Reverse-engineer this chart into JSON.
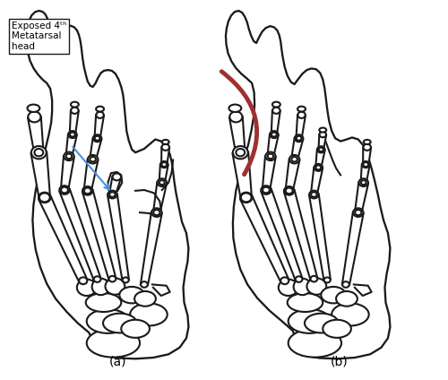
{
  "background_color": "#ffffff",
  "line_color": "#1a1a1a",
  "line_width": 1.5,
  "annotation_box_text": "Exposed 4ᵗʰ\nMetatarsal\nhead",
  "arrow_color": "#4a90d9",
  "label_a": "(a)",
  "label_b": "(b)",
  "curved_arrow_color": "#a03030",
  "fig_width": 5.0,
  "fig_height": 4.24,
  "dpi": 100
}
